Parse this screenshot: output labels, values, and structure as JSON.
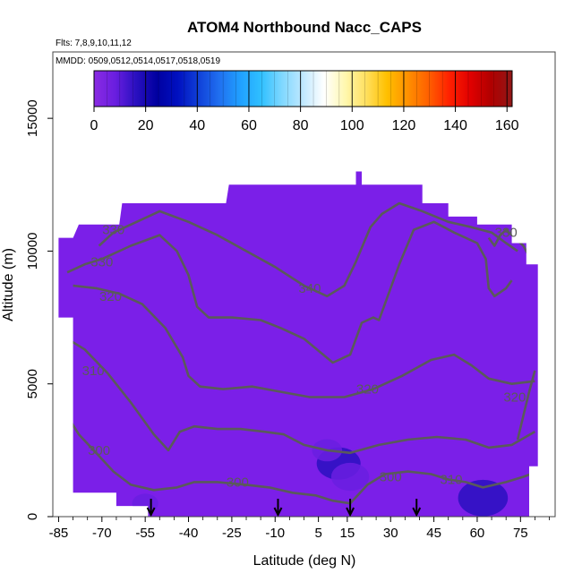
{
  "title": "ATOM4 Northbound Nacc_CAPS",
  "flights_text": "Flts: 7,8,9,10,11,12",
  "dates_text": "MMDD: 0509,0512,0514,0517,0518,0519",
  "colors": {
    "background_fill": "#7b1fe8",
    "contour": "#5a5a5a",
    "colorbar": [
      "#8a2be2",
      "#6a1ee0",
      "#2a10c0",
      "#0000a0",
      "#0010c0",
      "#1040d8",
      "#2070f0",
      "#20a0ff",
      "#30c0ff",
      "#80d8ff",
      "#c0e8ff",
      "#ffffff",
      "#fff8b0",
      "#ffe060",
      "#ffc000",
      "#ff9000",
      "#ff6000",
      "#ff2000",
      "#e00000",
      "#b00000",
      "#901818"
    ]
  },
  "chart_data": {
    "type": "heatmap",
    "title": "ATOM4 Northbound Nacc_CAPS",
    "xlabel": "Latitude (deg N)",
    "ylabel": "Altitude (m)",
    "xlim": [
      -87,
      87
    ],
    "ylim": [
      0,
      17500
    ],
    "x_ticks": [
      -85,
      -70,
      -55,
      -40,
      -25,
      -10,
      5,
      15,
      30,
      45,
      60,
      75
    ],
    "x_tick_labels": [
      "-85",
      "-70",
      "-55",
      "-40",
      "-25",
      "-10",
      "5",
      "15",
      "30",
      "45",
      "60",
      "75"
    ],
    "y_ticks": [
      0,
      5000,
      10000,
      15000
    ],
    "y_tick_labels": [
      "0",
      "5000",
      "10000",
      "15000"
    ],
    "colorbar": {
      "range": [
        0,
        162
      ],
      "ticks": [
        0,
        20,
        40,
        60,
        80,
        100,
        120,
        140,
        160
      ],
      "tick_labels": [
        "0",
        "20",
        "40",
        "60",
        "80",
        "100",
        "120",
        "140",
        "160"
      ]
    },
    "coverage_top_boundary": [
      {
        "lat": -85,
        "alt": 10500
      },
      {
        "lat": -80,
        "alt": 10500
      },
      {
        "lat": -78,
        "alt": 11000
      },
      {
        "lat": -64,
        "alt": 11000
      },
      {
        "lat": -63,
        "alt": 11800
      },
      {
        "lat": -27,
        "alt": 11800
      },
      {
        "lat": -26,
        "alt": 12500
      },
      {
        "lat": 18,
        "alt": 12500
      },
      {
        "lat": 18,
        "alt": 13000
      },
      {
        "lat": 20,
        "alt": 13000
      },
      {
        "lat": 20,
        "alt": 12500
      },
      {
        "lat": 41,
        "alt": 12500
      },
      {
        "lat": 41,
        "alt": 11800
      },
      {
        "lat": 50,
        "alt": 11800
      },
      {
        "lat": 50,
        "alt": 11300
      },
      {
        "lat": 60,
        "alt": 11300
      },
      {
        "lat": 60,
        "alt": 11000
      },
      {
        "lat": 72,
        "alt": 11000
      },
      {
        "lat": 72,
        "alt": 10300
      },
      {
        "lat": 77,
        "alt": 10300
      },
      {
        "lat": 77,
        "alt": 9500
      },
      {
        "lat": 81,
        "alt": 9500
      }
    ],
    "coverage_bottom_boundary": [
      {
        "lat": 81,
        "alt": 1900
      },
      {
        "lat": 78,
        "alt": 1900
      },
      {
        "lat": 78,
        "alt": 0
      },
      {
        "lat": -54,
        "alt": 0
      },
      {
        "lat": -54,
        "alt": 400
      },
      {
        "lat": -65,
        "alt": 400
      },
      {
        "lat": -65,
        "alt": 900
      },
      {
        "lat": -80,
        "alt": 900
      },
      {
        "lat": -80,
        "alt": 7500
      },
      {
        "lat": -85,
        "alt": 7500
      }
    ],
    "hotspots": [
      {
        "lat": 12,
        "alt": 2000,
        "value": 15
      },
      {
        "lat": 16,
        "alt": 1500,
        "value": 12
      },
      {
        "lat": 8,
        "alt": 2500,
        "value": 8
      },
      {
        "lat": 62,
        "alt": 700,
        "value": 18
      },
      {
        "lat": -55,
        "alt": 500,
        "value": 6
      }
    ],
    "contours": [
      {
        "label": "330",
        "label_at": {
          "lat": -66,
          "alt": 10800
        },
        "points": [
          [
            -71,
            10200
          ],
          [
            -66,
            10700
          ],
          [
            -60,
            11000
          ],
          [
            -50,
            11500
          ],
          [
            -40,
            11100
          ],
          [
            -30,
            10600
          ],
          [
            -20,
            10000
          ],
          [
            -10,
            9400
          ],
          [
            0,
            8700
          ],
          [
            8,
            8300
          ],
          [
            14,
            8700
          ],
          [
            18,
            9600
          ],
          [
            23,
            10900
          ],
          [
            27,
            11400
          ],
          [
            33,
            11800
          ],
          [
            41,
            11500
          ],
          [
            50,
            11100
          ],
          [
            58,
            10900
          ],
          [
            65,
            10700
          ],
          [
            70,
            10300
          ],
          [
            74,
            10000
          ]
        ]
      },
      {
        "label": "330",
        "label_at": {
          "lat": 70,
          "alt": 10700
        },
        "points": [
          [
            64,
            10500
          ],
          [
            66,
            10200
          ],
          [
            68,
            10600
          ],
          [
            70,
            10800
          ],
          [
            73,
            10500
          ],
          [
            76,
            10200
          ],
          [
            78,
            9800
          ]
        ]
      },
      {
        "label": "330",
        "label_at": {
          "lat": -70,
          "alt": 9600
        },
        "points": [
          [
            -82,
            9200
          ],
          [
            -76,
            9500
          ],
          [
            -70,
            9700
          ],
          [
            -60,
            10200
          ],
          [
            -50,
            10600
          ],
          [
            -44,
            10000
          ],
          [
            -40,
            9100
          ],
          [
            -37,
            7900
          ],
          [
            -33,
            7500
          ],
          [
            -25,
            7500
          ],
          [
            -15,
            7400
          ],
          [
            -8,
            7100
          ],
          [
            0,
            6700
          ],
          [
            10,
            5800
          ],
          [
            16,
            6100
          ],
          [
            20,
            7300
          ],
          [
            24,
            7500
          ],
          [
            26,
            7400
          ],
          [
            29,
            8300
          ],
          [
            33,
            9500
          ],
          [
            38,
            10800
          ],
          [
            45,
            11100
          ],
          [
            52,
            10700
          ],
          [
            60,
            10300
          ],
          [
            63,
            9700
          ],
          [
            64,
            8600
          ],
          [
            66,
            8300
          ],
          [
            70,
            8600
          ],
          [
            72,
            8900
          ]
        ]
      },
      {
        "label": "320",
        "label_at": {
          "lat": -67,
          "alt": 8300
        },
        "points": [
          [
            -80,
            8700
          ],
          [
            -72,
            8600
          ],
          [
            -64,
            8400
          ],
          [
            -56,
            8000
          ],
          [
            -48,
            7100
          ],
          [
            -42,
            6000
          ],
          [
            -40,
            5300
          ],
          [
            -36,
            4900
          ],
          [
            -28,
            4800
          ],
          [
            -18,
            4900
          ],
          [
            -8,
            4700
          ],
          [
            2,
            4500
          ],
          [
            14,
            4500
          ],
          [
            24,
            4800
          ],
          [
            34,
            5300
          ],
          [
            44,
            5900
          ],
          [
            52,
            6100
          ],
          [
            58,
            5700
          ],
          [
            64,
            5200
          ],
          [
            72,
            5000
          ],
          [
            80,
            5100
          ]
        ]
      },
      {
        "label": "310",
        "label_at": {
          "lat": -73,
          "alt": 5500
        },
        "points": [
          [
            -82,
            6700
          ],
          [
            -76,
            6300
          ],
          [
            -68,
            5400
          ],
          [
            -60,
            4300
          ],
          [
            -52,
            3100
          ],
          [
            -47,
            2500
          ],
          [
            -43,
            3200
          ],
          [
            -38,
            3400
          ],
          [
            -30,
            3300
          ],
          [
            -22,
            3300
          ],
          [
            -14,
            3200
          ],
          [
            -7,
            3100
          ],
          [
            0,
            2700
          ],
          [
            8,
            2500
          ],
          [
            16,
            2400
          ],
          [
            26,
            2700
          ],
          [
            36,
            2900
          ],
          [
            46,
            3000
          ],
          [
            56,
            2900
          ],
          [
            64,
            2600
          ],
          [
            72,
            2700
          ],
          [
            80,
            3200
          ]
        ]
      },
      {
        "label": "300",
        "label_at": {
          "lat": -71,
          "alt": 2500
        },
        "points": [
          [
            -82,
            3800
          ],
          [
            -78,
            3100
          ],
          [
            -72,
            2400
          ],
          [
            -66,
            1700
          ],
          [
            -60,
            1200
          ],
          [
            -52,
            1000
          ],
          [
            -44,
            1100
          ],
          [
            -38,
            1300
          ],
          [
            -30,
            1300
          ],
          [
            -20,
            1200
          ],
          [
            -12,
            1100
          ],
          [
            -4,
            900
          ],
          [
            4,
            800
          ],
          [
            10,
            600
          ],
          [
            16,
            500
          ],
          [
            22,
            1200
          ],
          [
            28,
            1600
          ],
          [
            36,
            1700
          ],
          [
            44,
            1600
          ],
          [
            50,
            1400
          ],
          [
            56,
            1300
          ],
          [
            62,
            1100
          ],
          [
            70,
            1300
          ],
          [
            76,
            1500
          ],
          [
            81,
            1700
          ]
        ]
      },
      {
        "label": "320",
        "label_at": {
          "lat": 73,
          "alt": 4500
        },
        "points": [
          [
            74,
            2900
          ],
          [
            76,
            3800
          ],
          [
            78,
            4700
          ],
          [
            80,
            5500
          ]
        ]
      }
    ],
    "extra_contour_labels": [
      {
        "label": "320",
        "label_at": {
          "lat": 22,
          "alt": 4800
        }
      },
      {
        "label": "310",
        "label_at": {
          "lat": 51,
          "alt": 1400
        }
      },
      {
        "label": "300",
        "label_at": {
          "lat": -23,
          "alt": 1300
        }
      },
      {
        "label": "300",
        "label_at": {
          "lat": 30,
          "alt": 1500
        }
      },
      {
        "label": "340",
        "label_at": {
          "lat": 2,
          "alt": 8600
        }
      }
    ],
    "arrows_lat": [
      -53,
      -9,
      16,
      39
    ]
  }
}
